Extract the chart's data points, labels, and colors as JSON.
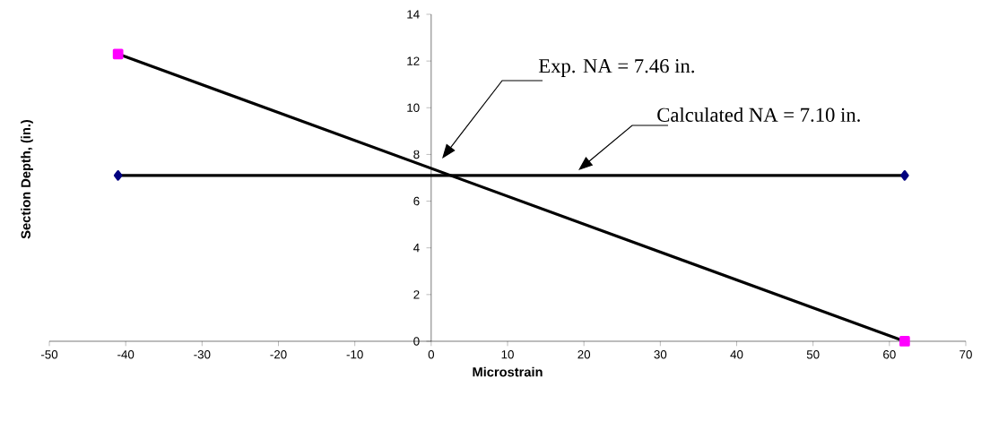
{
  "chart_data": {
    "type": "line",
    "xlabel": "Microstrain",
    "ylabel": "Section Depth, (in.)",
    "annotations": [
      "Exp. NA = 7.46 in.",
      "Calculated NA  = 7.10 in."
    ],
    "x": [
      -41,
      62
    ],
    "series": [
      {
        "values": [
          12.3,
          0
        ],
        "color": "#000000",
        "marker": "square"
      },
      {
        "values": [
          7.1,
          7.1
        ],
        "color": "#000000",
        "marker": "diamond"
      }
    ],
    "xlim": [
      -50,
      70
    ],
    "xticks": [
      -50,
      -40,
      -30,
      -20,
      -10,
      0,
      10,
      20,
      30,
      40,
      50,
      60,
      70
    ],
    "ylim": [
      0,
      14
    ],
    "yticks": [
      0,
      2,
      4,
      6,
      8,
      10,
      12,
      14
    ],
    "line_style": "solid"
  }
}
